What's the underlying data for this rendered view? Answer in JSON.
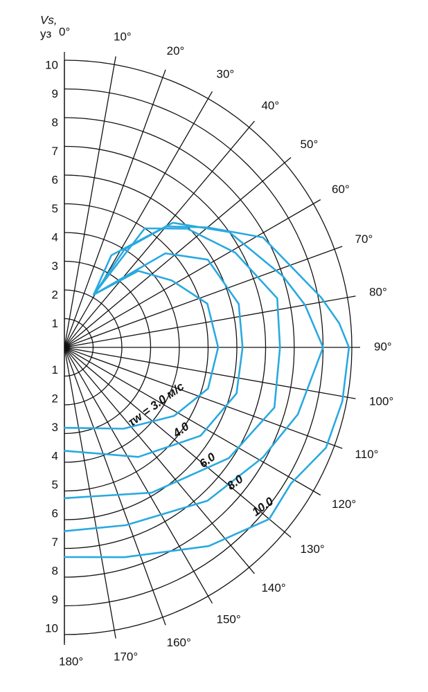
{
  "chart_data": {
    "type": "polar",
    "r_label": [
      "Vs,",
      "уз"
    ],
    "rlim": [
      0,
      10
    ],
    "rticks": [
      1,
      2,
      3,
      4,
      5,
      6,
      7,
      8,
      9,
      10
    ],
    "thetalim": [
      0,
      180
    ],
    "thetaticks": [
      {
        "value": 0,
        "label": "0°"
      },
      {
        "value": 10,
        "label": "10°"
      },
      {
        "value": 20,
        "label": "20°"
      },
      {
        "value": 30,
        "label": "30°"
      },
      {
        "value": 40,
        "label": "40°"
      },
      {
        "value": 50,
        "label": "50°"
      },
      {
        "value": 60,
        "label": "60°"
      },
      {
        "value": 70,
        "label": "70°"
      },
      {
        "value": 80,
        "label": "80°"
      },
      {
        "value": 90,
        "label": "90°"
      },
      {
        "value": 100,
        "label": "100°"
      },
      {
        "value": 110,
        "label": "110°"
      },
      {
        "value": 120,
        "label": "120°"
      },
      {
        "value": 130,
        "label": "130°"
      },
      {
        "value": 140,
        "label": "140°"
      },
      {
        "value": 150,
        "label": "150°"
      },
      {
        "value": 160,
        "label": "160°"
      },
      {
        "value": 170,
        "label": "170°"
      },
      {
        "value": 180,
        "label": "180°"
      }
    ],
    "grid": true,
    "series": [
      {
        "name": "τw = 3.0 м/с",
        "color": "#29a9e0",
        "theta": [
          29,
          44,
          58,
          73,
          90,
          106,
          122,
          144,
          180
        ],
        "r": [
          2.1,
          3.7,
          4.4,
          5.2,
          5.35,
          5.2,
          4.5,
          3.5,
          2.8
        ]
      },
      {
        "name": "4.0",
        "color": "#29a9e0",
        "theta": [
          29,
          47,
          58.5,
          76,
          90,
          105,
          123,
          146,
          180
        ],
        "r": [
          2.1,
          4.8,
          5.85,
          6.25,
          6.2,
          6.2,
          5.65,
          4.6,
          3.6
        ]
      },
      {
        "name": "6.0",
        "color": "#29a9e0",
        "theta": [
          29,
          34,
          46,
          61,
          77,
          90,
          106,
          124,
          149,
          180
        ],
        "r": [
          2.1,
          5.0,
          5.95,
          6.8,
          7.6,
          7.5,
          7.6,
          6.9,
          5.9,
          5.25
        ]
      },
      {
        "name": "8.0",
        "color": "#29a9e0",
        "theta": [
          29,
          31.5,
          41,
          55,
          72,
          80,
          90,
          106,
          119,
          137,
          161,
          180
        ],
        "r": [
          2.1,
          4.0,
          5.75,
          7.0,
          8.0,
          8.5,
          9.0,
          8.45,
          7.9,
          7.3,
          6.55,
          6.4
        ]
      },
      {
        "name": "10.0",
        "color": "#29a9e0",
        "theta": [
          29,
          27,
          40,
          50,
          61,
          79,
          85,
          90,
          101,
          111,
          121,
          130,
          144,
          164,
          180
        ],
        "r": [
          2.1,
          3.6,
          5.5,
          6.5,
          7.9,
          9.1,
          9.6,
          9.9,
          9.85,
          9.75,
          9.2,
          9.3,
          8.55,
          7.6,
          7.3
        ]
      }
    ]
  }
}
